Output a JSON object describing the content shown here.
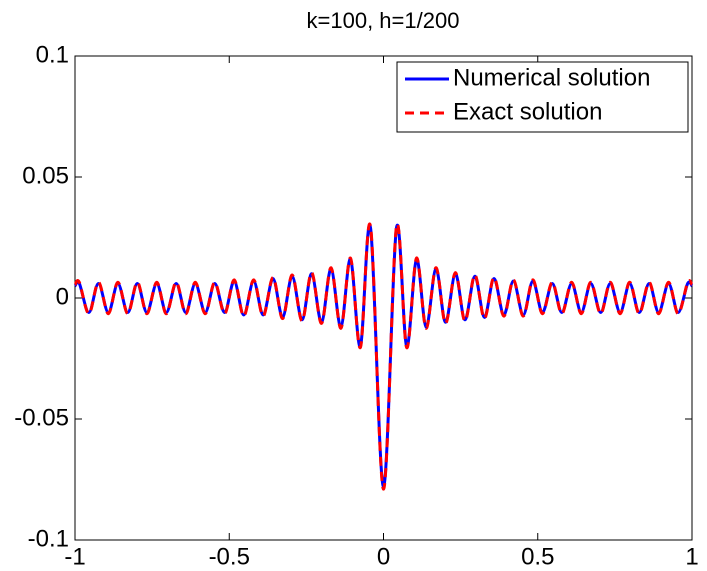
{
  "chart_data": {
    "type": "line",
    "title": "k=100, h=1/200",
    "x": [
      -1.0,
      -0.986,
      -0.955,
      -0.924,
      -0.892,
      -0.861,
      -0.829,
      -0.798,
      -0.767,
      -0.735,
      -0.704,
      -0.672,
      -0.641,
      -0.61,
      -0.578,
      -0.547,
      -0.515,
      -0.484,
      -0.453,
      -0.421,
      -0.39,
      -0.358,
      -0.327,
      -0.296,
      -0.264,
      -0.233,
      -0.201,
      -0.17,
      -0.138,
      -0.107,
      -0.075,
      -0.042,
      0,
      0.042,
      0.075,
      0.107,
      0.138,
      0.17,
      0.201,
      0.233,
      0.264,
      0.296,
      0.327,
      0.358,
      0.39,
      0.421,
      0.453,
      0.484,
      0.515,
      0.547,
      0.578,
      0.61,
      0.641,
      0.672,
      0.704,
      0.735,
      0.767,
      0.798,
      0.829,
      0.861,
      0.892,
      0.924,
      0.955,
      0.986,
      1.0
    ],
    "series": [
      {
        "name": "Numerical solution",
        "color": "#0000ff",
        "dash": false,
        "values": [
          0.005,
          0.006,
          -0.006,
          0.006,
          -0.006,
          0.006,
          -0.006,
          0.006,
          -0.006,
          0.006,
          -0.006,
          0.006,
          -0.006,
          0.006,
          -0.006,
          0.006,
          -0.006,
          0.007,
          -0.007,
          0.007,
          -0.007,
          0.008,
          -0.008,
          0.009,
          -0.009,
          0.01,
          -0.01,
          0.012,
          -0.012,
          0.016,
          -0.02,
          0.029,
          -0.078,
          0.029,
          -0.02,
          0.016,
          -0.012,
          0.012,
          -0.01,
          0.01,
          -0.009,
          0.009,
          -0.008,
          0.008,
          -0.007,
          0.007,
          -0.007,
          0.007,
          -0.006,
          0.006,
          -0.006,
          0.006,
          -0.006,
          0.006,
          -0.006,
          0.006,
          -0.006,
          0.006,
          -0.006,
          0.006,
          -0.006,
          0.006,
          -0.006,
          0.006,
          0.005
        ]
      },
      {
        "name": "Exact solution",
        "color": "#ff0000",
        "dash": true,
        "values": [
          0.0055,
          0.0065,
          -0.0065,
          0.0065,
          -0.0065,
          0.0065,
          -0.0065,
          0.0065,
          -0.0065,
          0.0065,
          -0.0065,
          0.0065,
          -0.0065,
          0.0065,
          -0.0065,
          0.0065,
          -0.0065,
          0.0075,
          -0.0075,
          0.0075,
          -0.0075,
          0.0085,
          -0.0085,
          0.0095,
          -0.0095,
          0.0105,
          -0.0105,
          0.0125,
          -0.0125,
          0.0165,
          -0.0205,
          0.0295,
          -0.079,
          0.0295,
          -0.0205,
          0.0165,
          -0.0125,
          0.0125,
          -0.0105,
          0.0105,
          -0.0095,
          0.0095,
          -0.0085,
          0.0085,
          -0.0075,
          0.0075,
          -0.0075,
          0.0075,
          -0.0065,
          0.0065,
          -0.0065,
          0.0065,
          -0.0065,
          0.0065,
          -0.0065,
          0.0065,
          -0.0065,
          0.0065,
          -0.0065,
          0.0065,
          -0.0065,
          0.0065,
          -0.0065,
          0.0065,
          0.0055
        ]
      }
    ],
    "xlim": [
      -1,
      1
    ],
    "xticks": [
      -1,
      -0.5,
      0,
      0.5,
      1
    ],
    "ylim": [
      -0.1,
      0.1
    ],
    "yticks": [
      -0.1,
      -0.05,
      0,
      0.05,
      0.1
    ],
    "grid": false,
    "legend": "northeast"
  }
}
